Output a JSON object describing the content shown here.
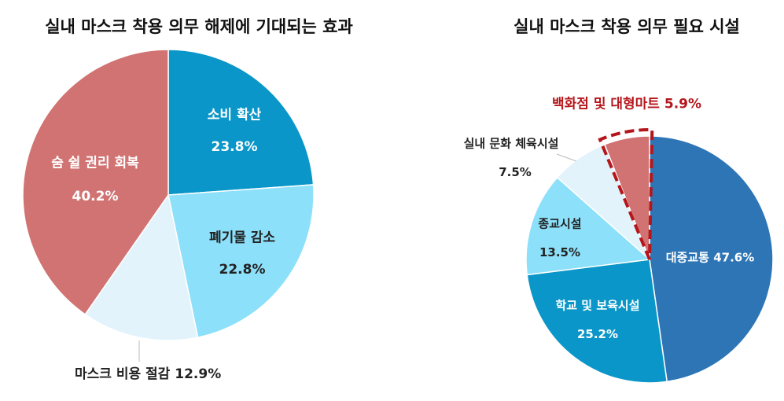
{
  "chart_data": [
    {
      "type": "pie",
      "title": "실내 마스크 착용 의무 해제에 기대되는 효과",
      "categories": [
        "소비 확산",
        "폐기물 감소",
        "마스크 비용 절감",
        "숨 쉴 권리 회복"
      ],
      "values": [
        23.8,
        22.8,
        12.9,
        40.2
      ],
      "value_labels": [
        "23.8%",
        "22.8%",
        "12.9%",
        "40.2%"
      ],
      "colors": [
        "#0a96c8",
        "#8ce0fa",
        "#e2f3fc",
        "#d07372"
      ],
      "start": "top",
      "direction": "clockwise"
    },
    {
      "type": "pie",
      "title": "실내 마스크 착용 의무 필요 시설",
      "categories": [
        "대중교통",
        "학교 및 보육시설",
        "종교시설",
        "실내 문화 체육시설",
        "백화점 및 대형마트"
      ],
      "values": [
        47.6,
        25.2,
        13.5,
        7.5,
        5.9
      ],
      "value_labels": [
        "47.6%",
        "25.2%",
        "13.5%",
        "7.5%",
        "5.9%"
      ],
      "colors": [
        "#2e75b6",
        "#0a96c8",
        "#8ce0fa",
        "#e2f3fc",
        "#d07372"
      ],
      "highlight": "백화점 및 대형마트",
      "highlight_color": "#b5161b",
      "start": "top",
      "direction": "clockwise"
    }
  ]
}
